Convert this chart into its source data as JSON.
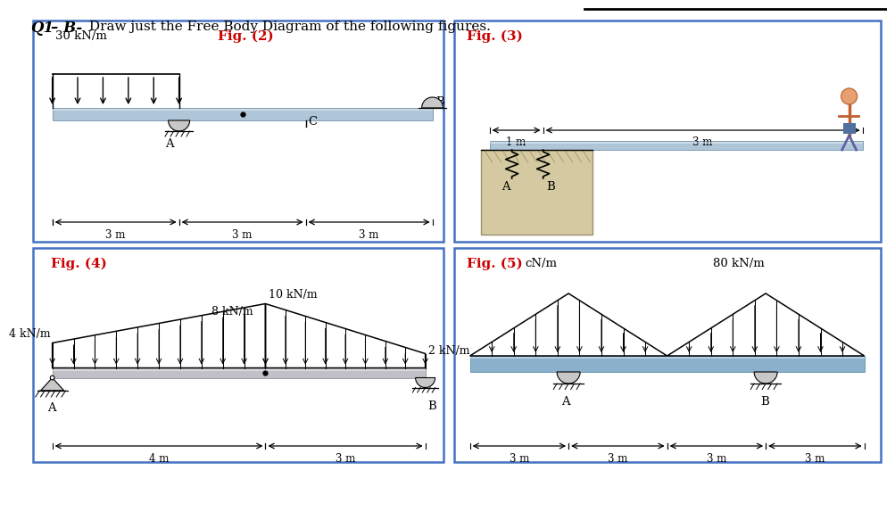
{
  "title_part1": "Q1",
  "title_part2": "– B-",
  "title_part3": " Draw just the Free Body Diagram of the following figures.",
  "box_color": "#4472c4",
  "beam_color_blue": "#aec6d8",
  "beam_color_gray": "#b0b0b0",
  "red_label": "#cc0000",
  "fig2": {
    "label": "Fig. (2)",
    "load_label": "30 kN/m",
    "dims": [
      "3 m",
      "3 m",
      "3 m"
    ]
  },
  "fig3": {
    "label": "Fig. (3)",
    "dims": [
      "1 m",
      "3 m"
    ]
  },
  "fig4": {
    "label": "Fig. (4)",
    "load_labels": [
      "4 kN/m",
      "8 kN/m",
      "10 kN/m",
      "2 kN/m"
    ],
    "dims": [
      "4 m",
      "3 m"
    ]
  },
  "fig5": {
    "label": "Fig. (5)",
    "load_label_left": "cN/m",
    "load_label_right": "80 kN/m",
    "dims": [
      "3 m",
      "3 m",
      "3 m",
      "3 m"
    ]
  },
  "bg": "#ffffff"
}
